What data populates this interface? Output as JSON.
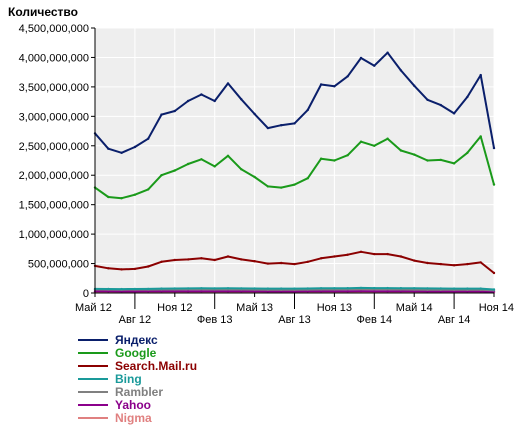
{
  "chart_data": {
    "type": "line",
    "ylabel": "Количество",
    "ylim": [
      0,
      4500000000
    ],
    "y_ticks": [
      0,
      500000000,
      1000000000,
      1500000000,
      2000000000,
      2500000000,
      3000000000,
      3500000000,
      4000000000,
      4500000000
    ],
    "y_tick_labels": [
      "0",
      "500,000,000",
      "1,000,000,000",
      "1,500,000,000",
      "2,000,000,000",
      "2,500,000,000",
      "3,000,000,000",
      "3,500,000,000",
      "4,000,000,000",
      "4,500,000,000"
    ],
    "x": [
      "2012-05",
      "2012-06",
      "2012-07",
      "2012-08",
      "2012-09",
      "2012-10",
      "2012-11",
      "2012-12",
      "2013-01",
      "2013-02",
      "2013-03",
      "2013-04",
      "2013-05",
      "2013-06",
      "2013-07",
      "2013-08",
      "2013-09",
      "2013-10",
      "2013-11",
      "2013-12",
      "2014-01",
      "2014-02",
      "2014-03",
      "2014-04",
      "2014-05",
      "2014-06",
      "2014-07",
      "2014-08",
      "2014-09",
      "2014-10",
      "2014-11"
    ],
    "x_ticks": [
      {
        "index": 0,
        "label": "Май 12",
        "row": 0
      },
      {
        "index": 3,
        "label": "Авг 12",
        "row": 1
      },
      {
        "index": 6,
        "label": "Ноя 12",
        "row": 0
      },
      {
        "index": 9,
        "label": "Фев 13",
        "row": 1
      },
      {
        "index": 12,
        "label": "Май 13",
        "row": 0
      },
      {
        "index": 15,
        "label": "Авг 13",
        "row": 1
      },
      {
        "index": 18,
        "label": "Ноя 13",
        "row": 0
      },
      {
        "index": 21,
        "label": "Фев 14",
        "row": 1
      },
      {
        "index": 24,
        "label": "Май 14",
        "row": 0
      },
      {
        "index": 27,
        "label": "Авг 14",
        "row": 1
      },
      {
        "index": 30,
        "label": "Ноя 14",
        "row": 0
      }
    ],
    "grid": true,
    "legend_position": "bottom",
    "series": [
      {
        "name": "Яндекс",
        "color": "#0a1f6b",
        "values": [
          2710000000,
          2450000000,
          2380000000,
          2480000000,
          2620000000,
          3030000000,
          3090000000,
          3260000000,
          3370000000,
          3260000000,
          3560000000,
          3290000000,
          3040000000,
          2800000000,
          2850000000,
          2880000000,
          3110000000,
          3540000000,
          3510000000,
          3680000000,
          3990000000,
          3860000000,
          4080000000,
          3780000000,
          3520000000,
          3280000000,
          3190000000,
          3050000000,
          3330000000,
          3700000000,
          2460000000
        ]
      },
      {
        "name": "Google",
        "color": "#1a9a1a",
        "values": [
          1790000000,
          1630000000,
          1610000000,
          1670000000,
          1760000000,
          2000000000,
          2080000000,
          2190000000,
          2270000000,
          2150000000,
          2330000000,
          2100000000,
          1970000000,
          1810000000,
          1790000000,
          1840000000,
          1950000000,
          2280000000,
          2250000000,
          2340000000,
          2570000000,
          2500000000,
          2620000000,
          2420000000,
          2350000000,
          2250000000,
          2260000000,
          2200000000,
          2380000000,
          2660000000,
          1840000000
        ]
      },
      {
        "name": "Search.Mail.ru",
        "color": "#8b0000",
        "values": [
          460000000,
          420000000,
          400000000,
          410000000,
          450000000,
          530000000,
          560000000,
          570000000,
          590000000,
          560000000,
          620000000,
          570000000,
          540000000,
          500000000,
          510000000,
          490000000,
          530000000,
          590000000,
          620000000,
          650000000,
          700000000,
          660000000,
          660000000,
          620000000,
          550000000,
          510000000,
          490000000,
          470000000,
          490000000,
          520000000,
          340000000
        ]
      },
      {
        "name": "Bing",
        "color": "#1a9a9a",
        "values": [
          70000000,
          68000000,
          66000000,
          68000000,
          70000000,
          74000000,
          76000000,
          78000000,
          80000000,
          78000000,
          80000000,
          78000000,
          76000000,
          74000000,
          74000000,
          74000000,
          76000000,
          80000000,
          80000000,
          82000000,
          86000000,
          84000000,
          84000000,
          82000000,
          80000000,
          78000000,
          76000000,
          74000000,
          74000000,
          74000000,
          60000000
        ]
      },
      {
        "name": "Rambler",
        "color": "#808080",
        "values": [
          60000000,
          58000000,
          56000000,
          57000000,
          58000000,
          60000000,
          60000000,
          62000000,
          62000000,
          60000000,
          62000000,
          60000000,
          58000000,
          56000000,
          56000000,
          56000000,
          58000000,
          60000000,
          60000000,
          62000000,
          64000000,
          62000000,
          62000000,
          60000000,
          58000000,
          56000000,
          55000000,
          54000000,
          54000000,
          54000000,
          45000000
        ]
      },
      {
        "name": "Yahoo",
        "color": "#8b008b",
        "values": [
          30000000,
          29000000,
          28000000,
          28000000,
          29000000,
          30000000,
          30000000,
          31000000,
          31000000,
          30000000,
          31000000,
          30000000,
          29000000,
          28000000,
          28000000,
          28000000,
          29000000,
          30000000,
          30000000,
          31000000,
          32000000,
          31000000,
          31000000,
          30000000,
          29000000,
          28000000,
          28000000,
          27000000,
          27000000,
          27000000,
          22000000
        ]
      },
      {
        "name": "Nigma",
        "color": "#e08080",
        "values": [
          15000000,
          14000000,
          14000000,
          14000000,
          15000000,
          15000000,
          15000000,
          16000000,
          16000000,
          15000000,
          16000000,
          15000000,
          15000000,
          14000000,
          14000000,
          14000000,
          15000000,
          15000000,
          15000000,
          16000000,
          16000000,
          16000000,
          16000000,
          15000000,
          15000000,
          14000000,
          14000000,
          14000000,
          14000000,
          14000000,
          11000000
        ]
      }
    ]
  }
}
